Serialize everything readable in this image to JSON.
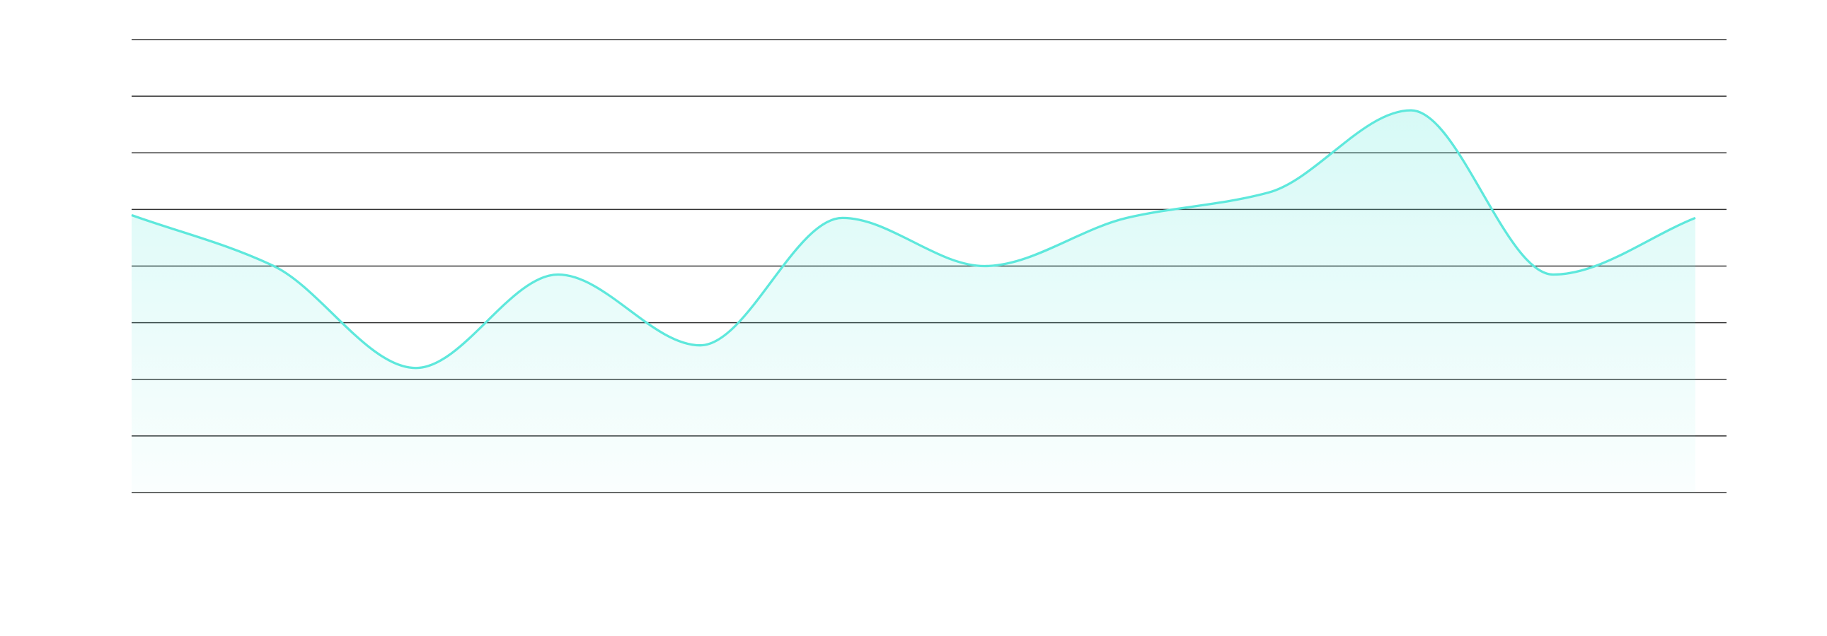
{
  "chart_data": {
    "type": "area",
    "categories": [
      null,
      null,
      null,
      null,
      null,
      null,
      null,
      null,
      null,
      null,
      null,
      null
    ],
    "values": [
      4.9,
      4,
      2.2,
      3.85,
      2.6,
      4.85,
      4,
      4.85,
      5.3,
      6.75,
      3.85,
      4.85
    ],
    "color": "#5ee8dc",
    "ylim": [
      0,
      8
    ],
    "yticks": [
      0,
      1,
      2,
      3,
      4,
      5,
      6,
      7,
      8
    ],
    "grid": true
  }
}
